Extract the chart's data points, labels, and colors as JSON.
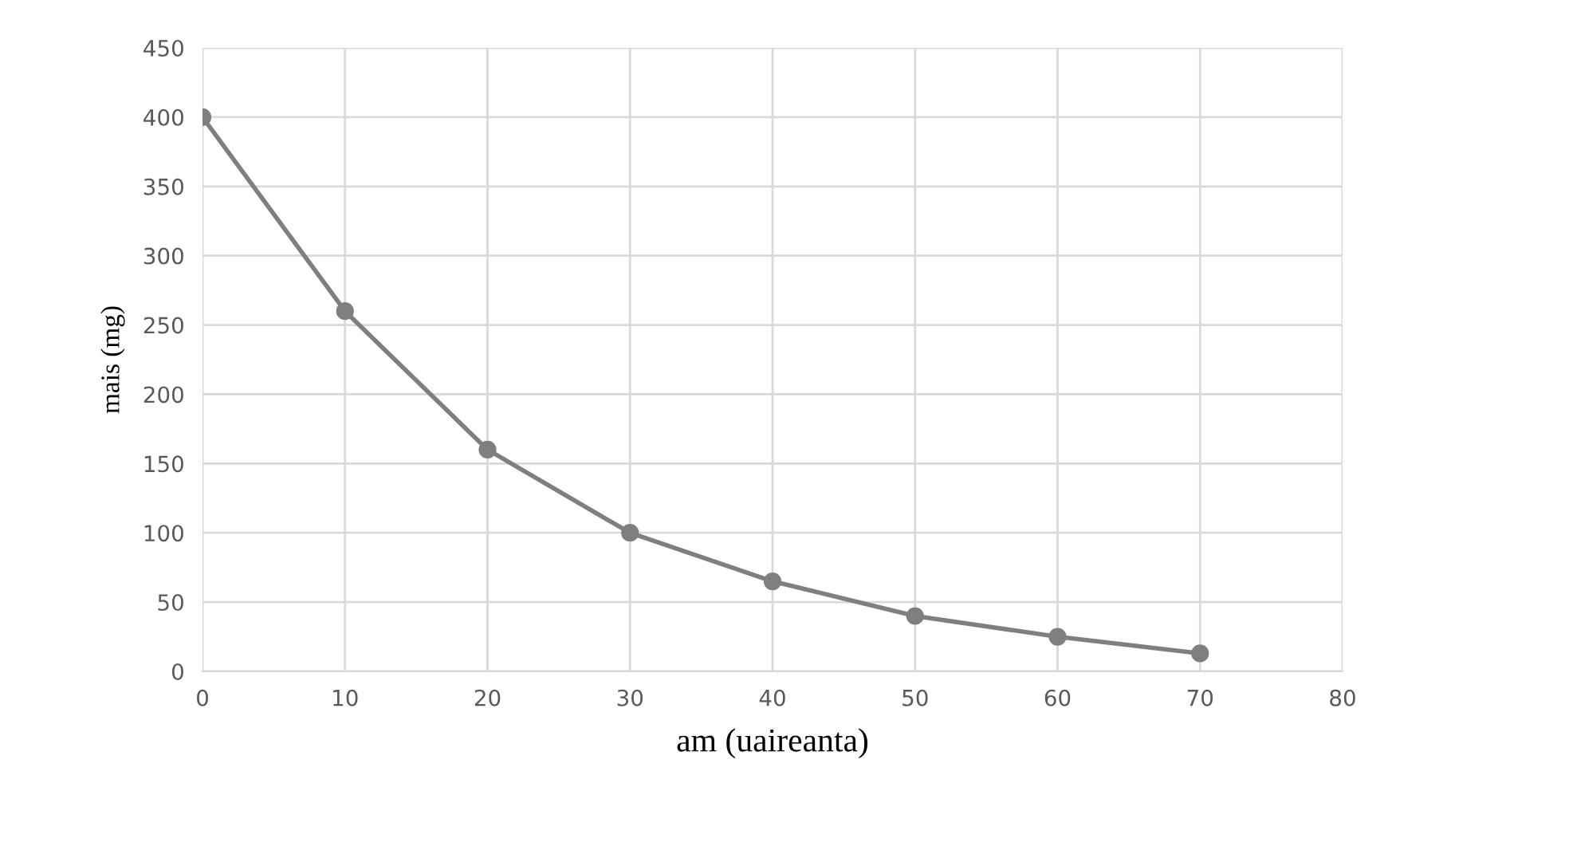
{
  "chart_data": {
    "type": "line",
    "xlabel": "am (uaireanta)",
    "ylabel": "mais (mg)",
    "x": [
      0,
      10,
      20,
      30,
      40,
      50,
      60,
      70
    ],
    "series": [
      {
        "color": "#7f7f7f",
        "values": [
          400,
          260,
          160,
          100,
          65,
          40,
          25,
          13
        ]
      }
    ],
    "xlim": [
      0,
      80
    ],
    "xticks": [
      0,
      10,
      20,
      30,
      40,
      50,
      60,
      70,
      80
    ],
    "ylim": [
      0,
      450
    ],
    "yticks": [
      0,
      50,
      100,
      150,
      200,
      250,
      300,
      350,
      400,
      450
    ],
    "grid": true,
    "marker": "circle",
    "line_style": "solid"
  }
}
